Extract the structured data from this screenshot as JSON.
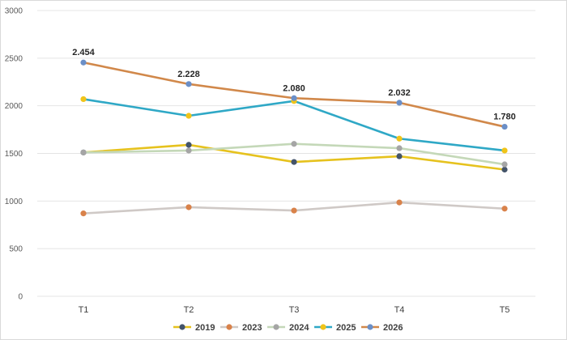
{
  "chart_data": {
    "type": "line",
    "categories": [
      "T1",
      "T2",
      "T3",
      "T4",
      "T5"
    ],
    "ylim": [
      0,
      3000
    ],
    "yticks": [
      0,
      500,
      1000,
      1500,
      2000,
      2500,
      3000
    ],
    "grid": true,
    "legend_position": "bottom",
    "series": [
      {
        "name": "2019",
        "line_color": "#e6c21e",
        "marker_color": "#44546a",
        "values": [
          1510,
          1590,
          1410,
          1470,
          1330
        ]
      },
      {
        "name": "2023",
        "line_color": "#cfc9c6",
        "marker_color": "#d9824a",
        "values": [
          870,
          935,
          900,
          985,
          920
        ]
      },
      {
        "name": "2024",
        "line_color": "#c4d8b8",
        "marker_color": "#a5a5a5",
        "values": [
          1510,
          1530,
          1600,
          1555,
          1385
        ]
      },
      {
        "name": "2025",
        "line_color": "#2fa8c6",
        "marker_color": "#f0c419",
        "values": [
          2070,
          1895,
          2050,
          1655,
          1530
        ]
      },
      {
        "name": "2026",
        "line_color": "#d1884a",
        "marker_color": "#6b8fc7",
        "values": [
          2454,
          2228,
          2080,
          2032,
          1780
        ]
      }
    ],
    "data_labels": [
      {
        "series": "2026",
        "index": 0,
        "text": "2.454"
      },
      {
        "series": "2026",
        "index": 1,
        "text": "2.228"
      },
      {
        "series": "2026",
        "index": 2,
        "text": "2.080"
      },
      {
        "series": "2026",
        "index": 3,
        "text": "2.032"
      },
      {
        "series": "2026",
        "index": 4,
        "text": "1.780"
      }
    ]
  }
}
